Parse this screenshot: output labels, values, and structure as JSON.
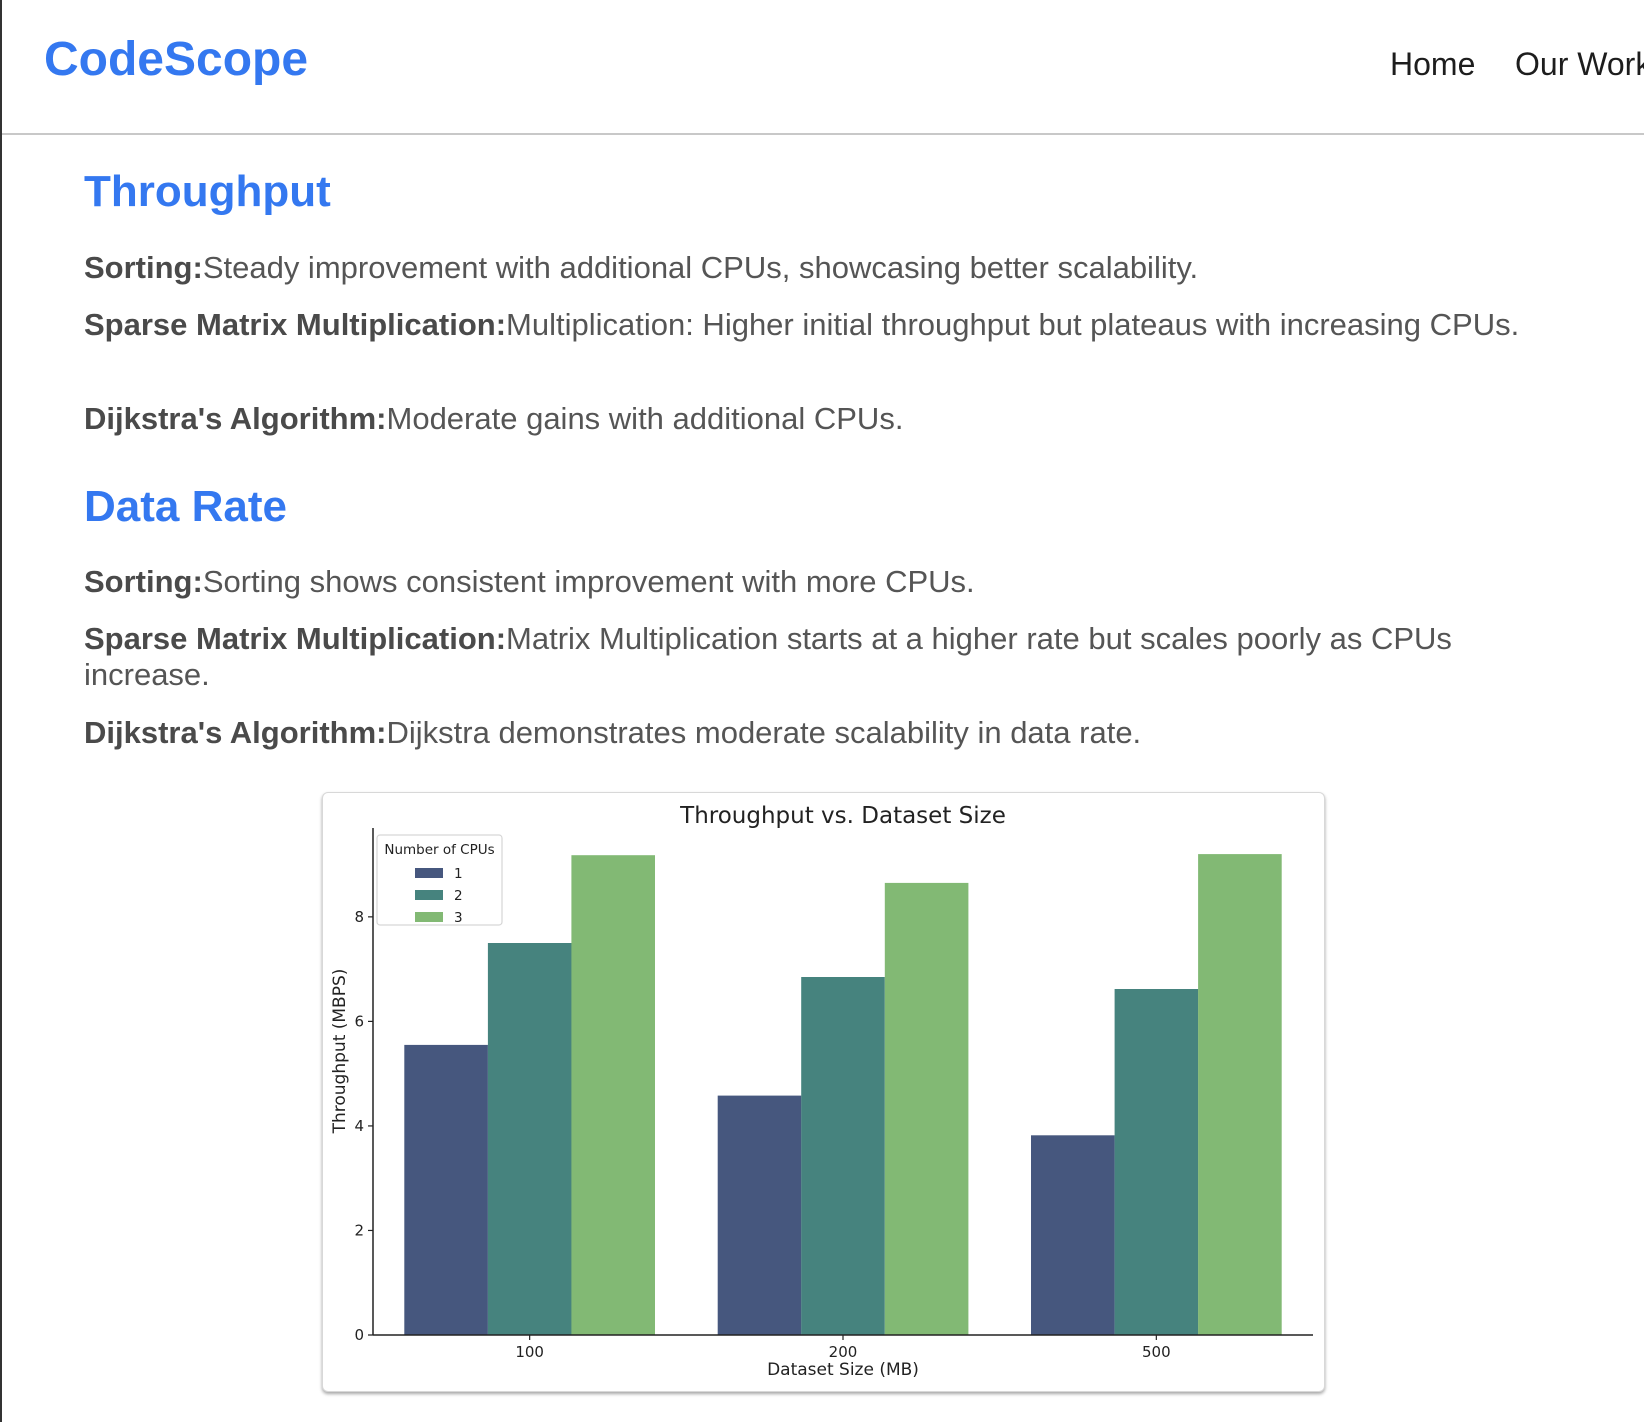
{
  "navbar": {
    "brand": "CodeScope",
    "links": [
      "Home",
      "Our Work"
    ]
  },
  "sections": [
    {
      "title": "Throughput",
      "items": [
        {
          "label": "Sorting:",
          "text": "Steady improvement with additional CPUs, showcasing better scalability."
        },
        {
          "label": "Sparse Matrix Multiplication:",
          "text": "Multiplication: Higher initial throughput but plateaus with increasing CPUs."
        },
        {
          "label": "Dijkstra's Algorithm:",
          "text": "Moderate gains with additional CPUs."
        }
      ]
    },
    {
      "title": "Data Rate",
      "items": [
        {
          "label": "Sorting:",
          "text": "Sorting shows consistent improvement with more CPUs."
        },
        {
          "label": "Sparse Matrix Multiplication:",
          "text": "Matrix Multiplication starts at a higher rate but scales poorly as CPUs increase."
        },
        {
          "label": "Dijkstra's Algorithm:",
          "text": "Dijkstra demonstrates moderate scalability in data rate."
        }
      ]
    }
  ],
  "colors": {
    "accent": "#3478f0",
    "body_text": "#555555"
  },
  "chart_data": {
    "type": "bar",
    "title": "Throughput vs. Dataset Size",
    "xlabel": "Dataset Size (MB)",
    "ylabel": "Throughput (MBPS)",
    "categories": [
      "100",
      "200",
      "500"
    ],
    "series": [
      {
        "name": "1",
        "values": [
          5.55,
          4.58,
          3.82
        ],
        "color": "#46577e"
      },
      {
        "name": "2",
        "values": [
          7.5,
          6.85,
          6.62
        ],
        "color": "#46837e"
      },
      {
        "name": "3",
        "values": [
          9.18,
          8.65,
          9.2
        ],
        "color": "#82b974"
      }
    ],
    "ylim": [
      0,
      9.7
    ],
    "yticks": [
      0,
      2,
      4,
      6,
      8
    ],
    "legend": {
      "title": "Number of CPUs",
      "placement": "top-left"
    },
    "grid": false
  }
}
